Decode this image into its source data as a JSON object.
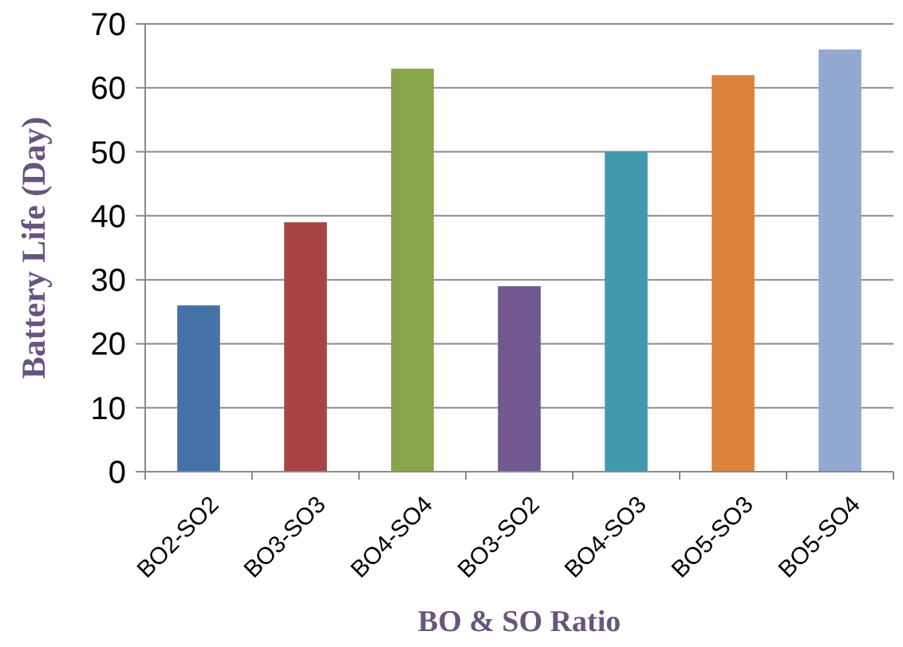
{
  "chart_data": {
    "type": "bar",
    "xlabel": "BO & SO Ratio",
    "ylabel": "Battery Life (Day)",
    "categories": [
      "BO2-SO2",
      "BO3-SO3",
      "BO4-SO4",
      "BO3-SO2",
      "BO4-SO3",
      "BO5-SO3",
      "BO5-SO4"
    ],
    "values": [
      26,
      39,
      63,
      29,
      50,
      62,
      66
    ],
    "colors": [
      "#4472a8",
      "#a84543",
      "#88a44c",
      "#715891",
      "#4398b0",
      "#db823c",
      "#93a9d1"
    ],
    "ylim": [
      0,
      70
    ],
    "yticks": [
      0,
      10,
      20,
      30,
      40,
      50,
      60,
      70
    ],
    "grid": "y"
  }
}
